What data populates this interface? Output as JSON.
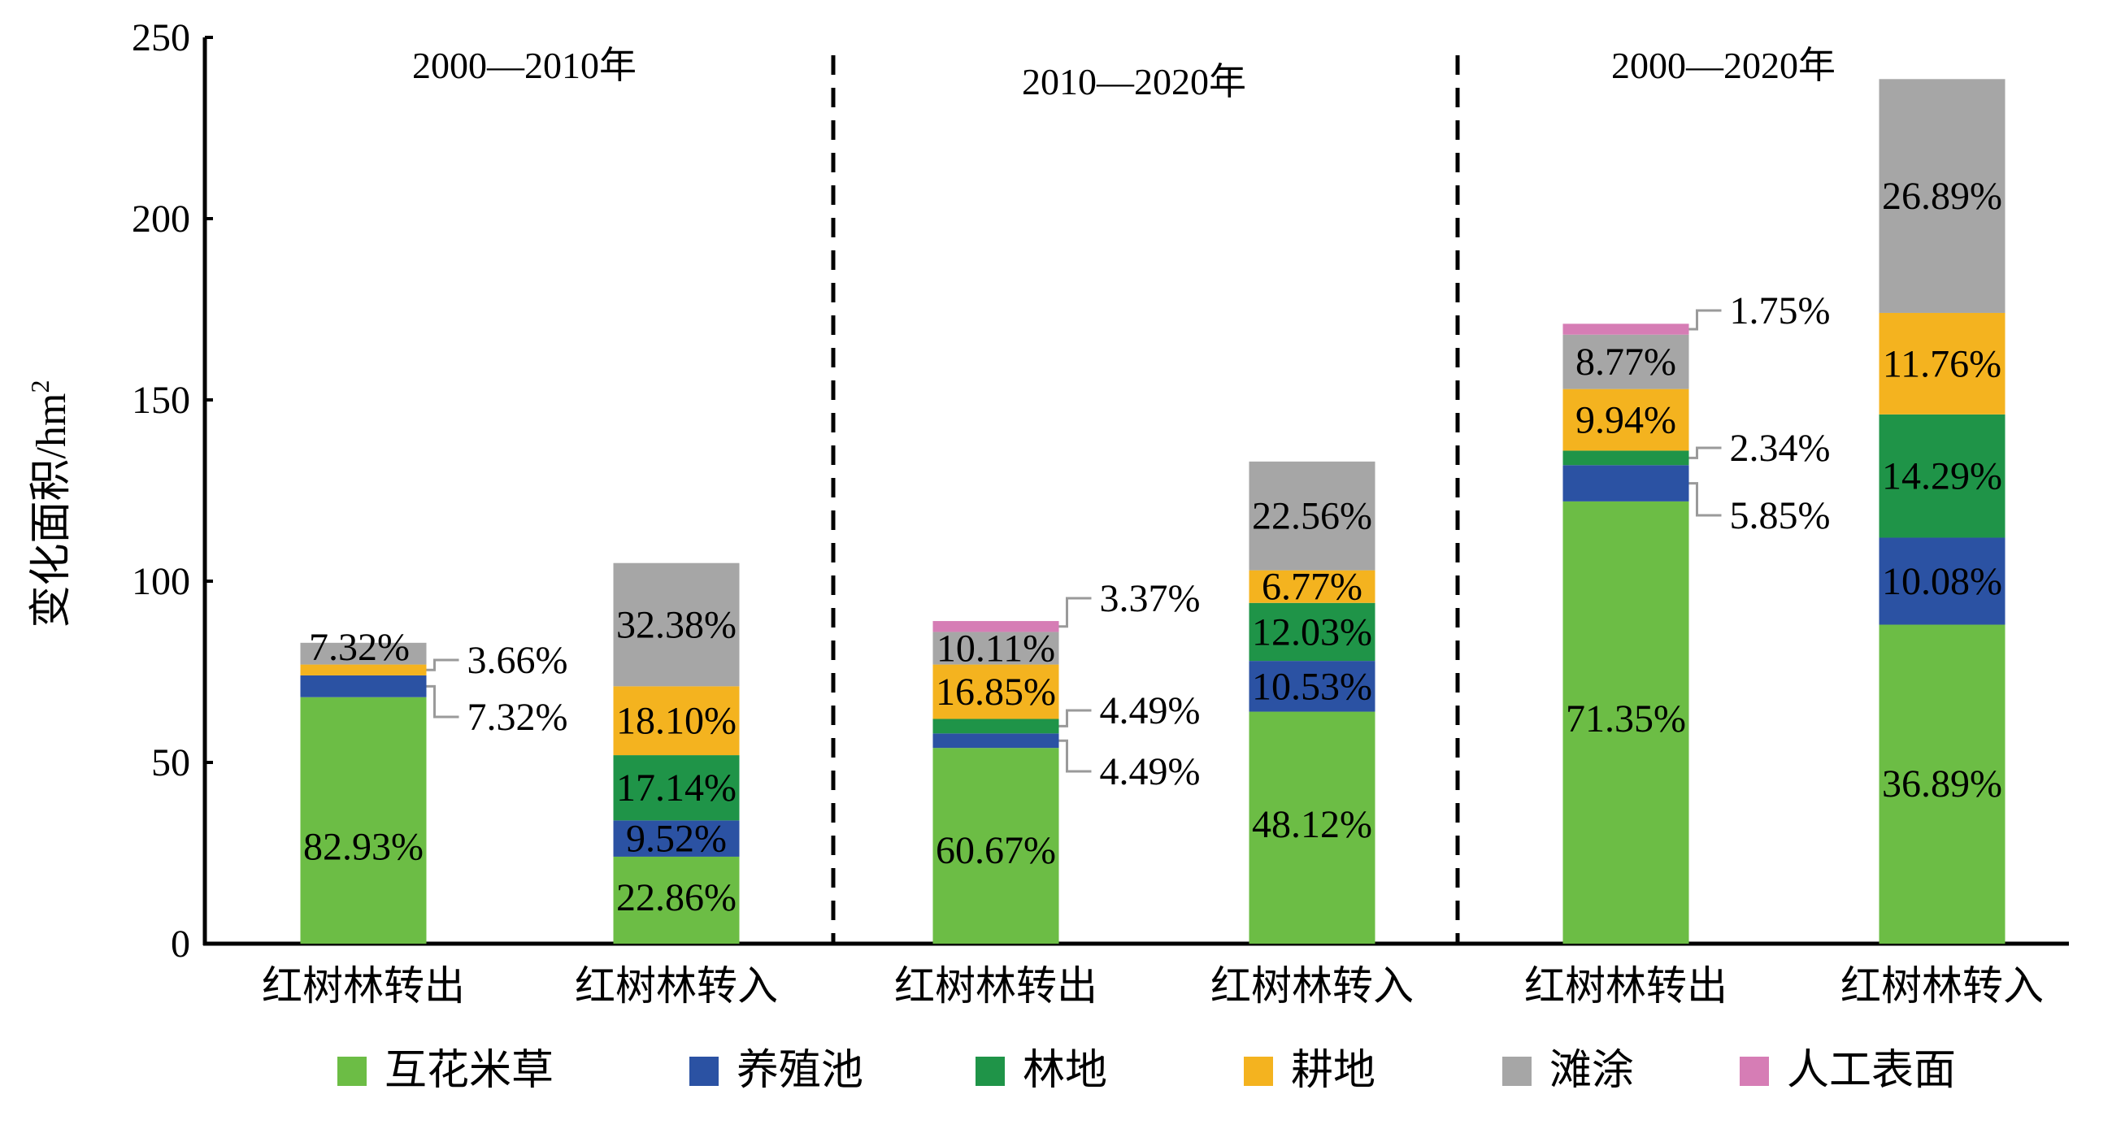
{
  "chart_data": {
    "type": "bar",
    "stacked": true,
    "ylabel": "变化面积/hm²",
    "ylabel_main": "变化面积/hm",
    "ylabel_sup": "2",
    "ylim": [
      0,
      250
    ],
    "yticks": [
      0,
      50,
      100,
      150,
      200,
      250
    ],
    "grid": false,
    "legend_position": "bottom",
    "periods": [
      "2000—2010年",
      "2010—2020年",
      "2000—2020年"
    ],
    "categories": [
      "红树林转出",
      "红树林转入",
      "红树林转出",
      "红树林转入",
      "红树林转出",
      "红树林转入"
    ],
    "category_period": [
      0,
      0,
      1,
      1,
      2,
      2
    ],
    "series": [
      {
        "name": "互花米草",
        "color": "#6cbd45",
        "values": [
          68.0,
          24.0,
          54.0,
          64.0,
          122.0,
          88.0
        ],
        "labels": [
          "82.93%",
          "22.86%",
          "60.67%",
          "48.12%",
          "71.35%",
          "36.89%"
        ]
      },
      {
        "name": "养殖池",
        "color": "#2b52a3",
        "values": [
          6.0,
          10.0,
          4.0,
          14.0,
          10.0,
          24.0
        ],
        "labels": [
          "7.32%",
          "9.52%",
          "4.49%",
          "10.53%",
          "5.85%",
          "10.08%"
        ]
      },
      {
        "name": "林地",
        "color": "#1f9448",
        "values": [
          0,
          18.0,
          4.0,
          16.0,
          4.0,
          34.0
        ],
        "labels": [
          "",
          "17.14%",
          "4.49%",
          "12.03%",
          "2.34%",
          "14.29%"
        ]
      },
      {
        "name": "耕地",
        "color": "#f4b31f",
        "values": [
          3.0,
          19.0,
          15.0,
          9.0,
          17.0,
          28.0
        ],
        "labels": [
          "3.66%",
          "18.10%",
          "16.85%",
          "6.77%",
          "9.94%",
          "11.76%"
        ]
      },
      {
        "name": "滩涂",
        "color": "#a6a6a6",
        "values": [
          6.0,
          34.0,
          9.0,
          30.0,
          15.0,
          64.5
        ],
        "labels": [
          "7.32%",
          "32.38%",
          "10.11%",
          "22.56%",
          "8.77%",
          "26.89%"
        ]
      },
      {
        "name": "人工表面",
        "color": "#d67db5",
        "values": [
          0,
          0,
          3.0,
          0,
          3.0,
          0
        ],
        "labels": [
          "",
          "",
          "3.37%",
          "",
          "1.75%",
          ""
        ]
      }
    ],
    "totals": [
      82,
      105,
      89,
      133,
      171,
      238.5
    ]
  }
}
